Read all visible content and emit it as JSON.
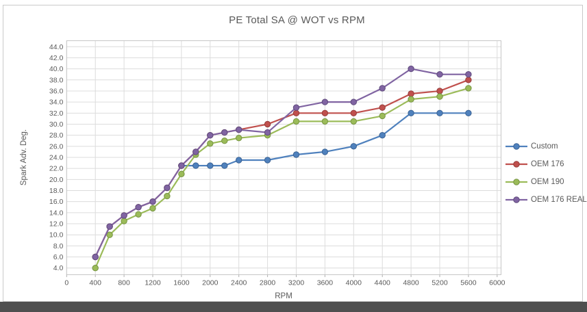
{
  "window": {
    "background": "#ffffff",
    "card_border_color": "#c9c9c9",
    "bottom_bar_color": "#4f4f4f"
  },
  "colors": {
    "grid": "#dcdcdc",
    "plot_border": "#c6c6c6",
    "tick_mark": "#b0b0b0",
    "axis_text": "#595959",
    "title_text": "#595959"
  },
  "chart_data": {
    "type": "line",
    "title": "PE Total SA @ WOT vs RPM",
    "xlabel": "RPM",
    "ylabel": "Spark Adv. Deg.",
    "grid": true,
    "legend_position": "right",
    "xlim": [
      0,
      6050
    ],
    "ylim": [
      2.8,
      45.2
    ],
    "x_ticks": [
      0,
      400,
      800,
      1200,
      1600,
      2000,
      2400,
      2800,
      3200,
      3600,
      4000,
      4400,
      4800,
      5200,
      5600,
      6000
    ],
    "y_ticks": [
      4.0,
      6.0,
      8.0,
      10.0,
      12.0,
      14.0,
      16.0,
      18.0,
      20.0,
      22.0,
      24.0,
      26.0,
      28.0,
      30.0,
      32.0,
      34.0,
      36.0,
      38.0,
      40.0,
      42.0,
      44.0
    ],
    "categories": [
      400,
      600,
      800,
      1000,
      1200,
      1400,
      1600,
      1800,
      2000,
      2200,
      2400,
      2800,
      3200,
      3600,
      4000,
      4400,
      4800,
      5200,
      5600
    ],
    "series": [
      {
        "name": "Custom",
        "color": "#4F81BD",
        "marker_border": "#3a6293",
        "values": [
          null,
          null,
          null,
          null,
          null,
          null,
          22.5,
          22.5,
          22.5,
          22.5,
          23.5,
          23.5,
          24.5,
          25.0,
          26.0,
          28.0,
          32.0,
          32.0,
          32.0
        ]
      },
      {
        "name": "OEM 176",
        "color": "#C0504D",
        "marker_border": "#943c3a",
        "values": [
          6.0,
          11.5,
          13.5,
          15.0,
          16.0,
          18.5,
          22.5,
          25.0,
          28.0,
          28.5,
          29.0,
          30.0,
          32.0,
          32.0,
          32.0,
          33.0,
          35.5,
          36.0,
          38.0
        ]
      },
      {
        "name": "OEM 190",
        "color": "#9BBB59",
        "marker_border": "#759342",
        "values": [
          4.0,
          10.0,
          12.5,
          13.7,
          14.8,
          17.0,
          21.0,
          24.5,
          26.5,
          27.0,
          27.5,
          28.0,
          30.5,
          30.5,
          30.5,
          31.5,
          34.5,
          35.0,
          36.5
        ]
      },
      {
        "name": "OEM 176 REAL",
        "color": "#8064A2",
        "marker_border": "#5f4a7c",
        "values": [
          6.0,
          11.5,
          13.5,
          15.0,
          16.0,
          18.5,
          22.5,
          25.0,
          28.0,
          28.5,
          29.0,
          28.5,
          33.0,
          34.0,
          34.0,
          36.5,
          40.0,
          39.0,
          39.0
        ]
      }
    ]
  }
}
